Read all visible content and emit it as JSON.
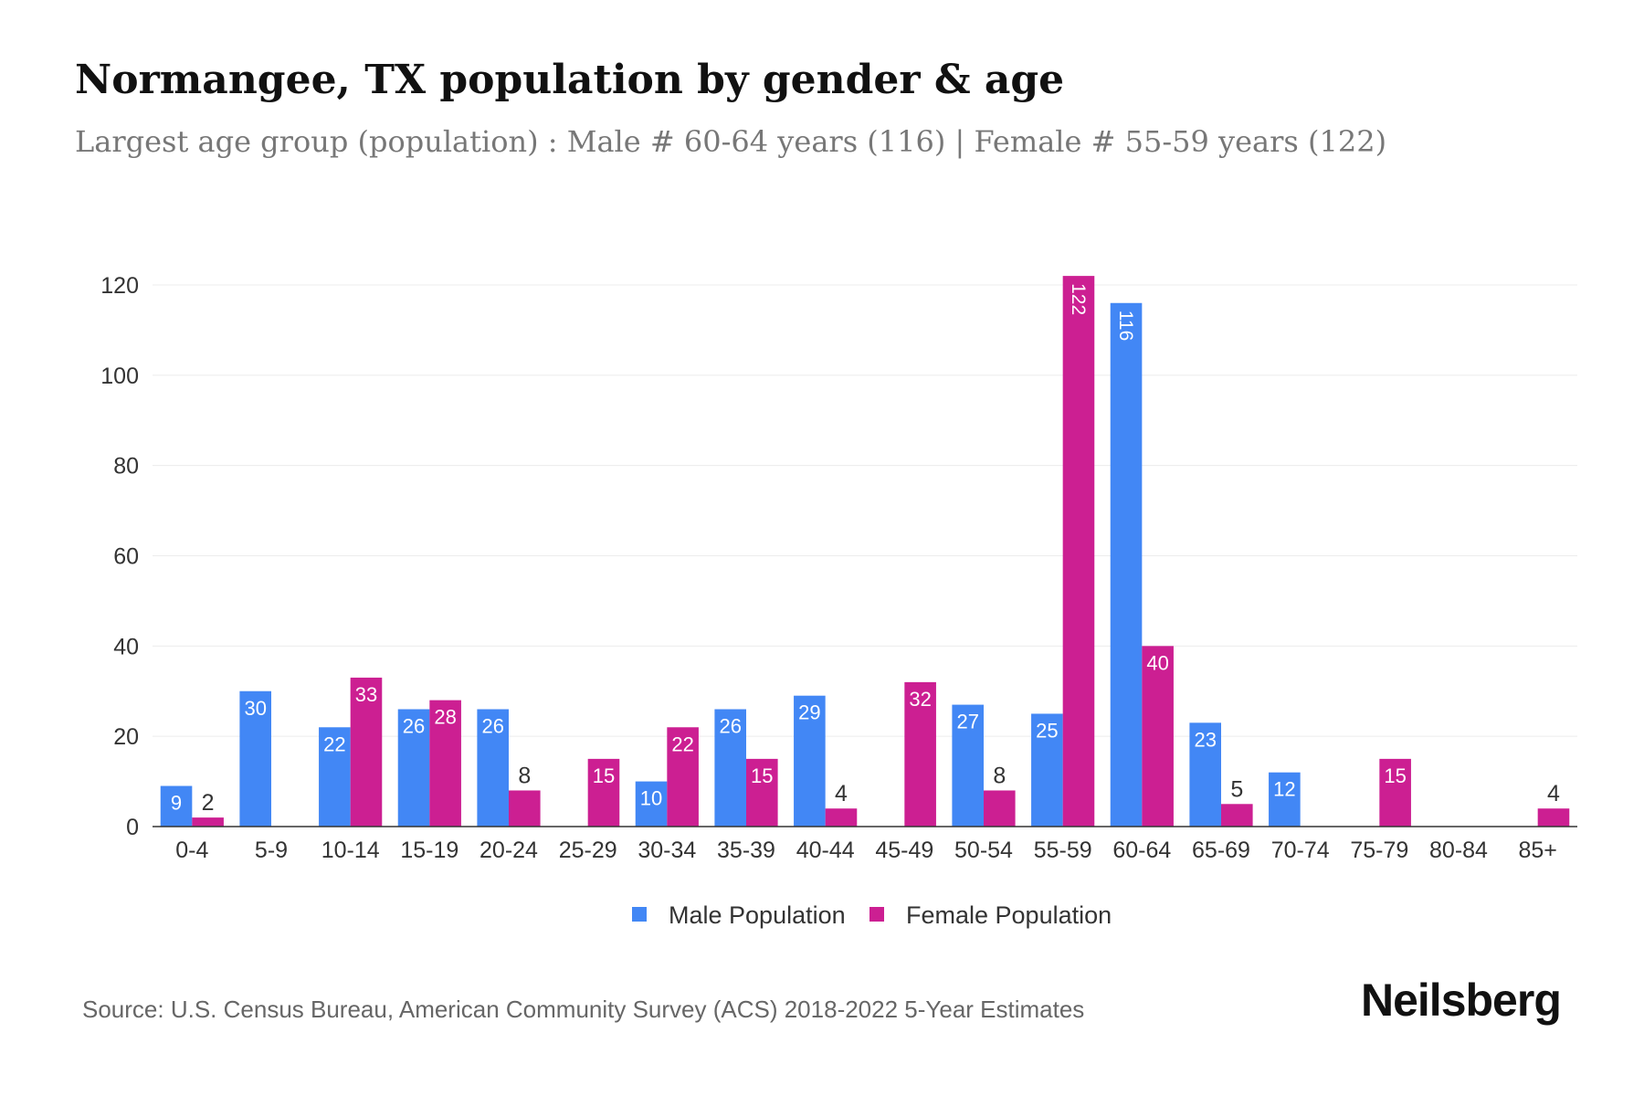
{
  "chart_data": {
    "type": "bar",
    "title": "Normangee, TX population by gender & age",
    "subtitle": "Largest age group (population) : Male # 60-64 years (116) | Female # 55-59 years (122)",
    "categories": [
      "0-4",
      "5-9",
      "10-14",
      "15-19",
      "20-24",
      "25-29",
      "30-34",
      "35-39",
      "40-44",
      "45-49",
      "50-54",
      "55-59",
      "60-64",
      "65-69",
      "70-74",
      "75-79",
      "80-84",
      "85+"
    ],
    "series": [
      {
        "name": "Male Population",
        "color": "#4287f5",
        "values": [
          9,
          30,
          22,
          26,
          26,
          0,
          10,
          26,
          29,
          0,
          27,
          25,
          116,
          23,
          12,
          0,
          0,
          0
        ]
      },
      {
        "name": "Female Population",
        "color": "#cc1f92",
        "values": [
          2,
          0,
          33,
          28,
          8,
          15,
          22,
          15,
          4,
          32,
          8,
          122,
          40,
          5,
          0,
          15,
          0,
          4
        ]
      }
    ],
    "yticks": [
      0,
      20,
      40,
      60,
      80,
      100,
      120
    ],
    "ylim": [
      0,
      120
    ],
    "grid": true,
    "legend": "bottom",
    "source": "Source: U.S. Census Bureau, American Community Survey (ACS) 2018-2022 5-Year Estimates",
    "brand": "Neilsberg"
  }
}
